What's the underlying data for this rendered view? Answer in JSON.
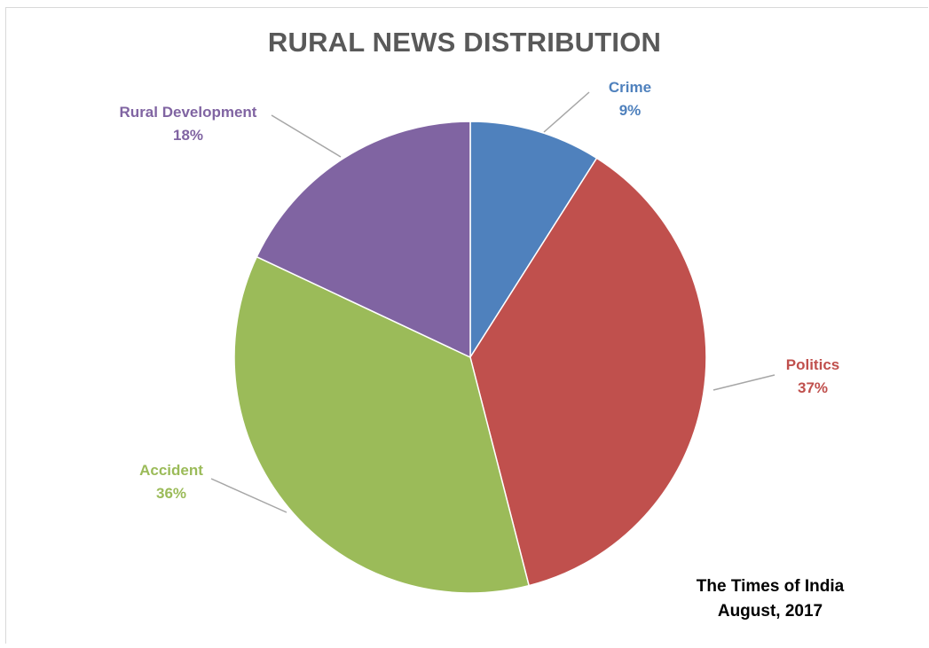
{
  "chart_data": {
    "type": "pie",
    "title": "RURAL NEWS DISTRIBUTION",
    "slices": [
      {
        "name": "Crime",
        "value": 9,
        "label": "9%",
        "color": "#4f81bd"
      },
      {
        "name": "Politics",
        "value": 37,
        "label": "37%",
        "color": "#c0504d"
      },
      {
        "name": "Accident",
        "value": 36,
        "label": "36%",
        "color": "#9bbb59"
      },
      {
        "name": "Rural Development",
        "value": 18,
        "label": "18%",
        "color": "#8064a2"
      }
    ],
    "start_angle_deg": 0,
    "direction": "clockwise",
    "data_labels": "outside with leader lines"
  },
  "source": {
    "line1": "The Times of India",
    "line2": "August, 2017"
  },
  "colors": {
    "title": "#595959",
    "leader_line": "#a6a6a6",
    "border": "#d9d9d9"
  }
}
